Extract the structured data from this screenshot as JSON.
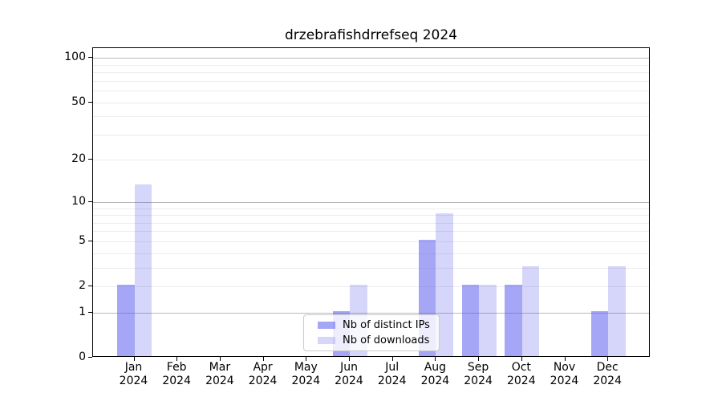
{
  "chart_data": {
    "type": "bar",
    "title": "drzebrafishdrrefseq 2024",
    "categories": [
      "Jan 2024",
      "Feb 2024",
      "Mar 2024",
      "Apr 2024",
      "May 2024",
      "Jun 2024",
      "Jul 2024",
      "Aug 2024",
      "Sep 2024",
      "Oct 2024",
      "Nov 2024",
      "Dec 2024"
    ],
    "series": [
      {
        "name": "Nb of distinct IPs",
        "color": "#5555ee",
        "alpha": 0.52,
        "values": [
          2,
          0,
          0,
          0,
          0,
          1,
          0,
          5,
          2,
          2,
          0,
          1
        ]
      },
      {
        "name": "Nb of downloads",
        "color": "#5555ee",
        "alpha": 0.24,
        "values": [
          13,
          0,
          0,
          0,
          0,
          2,
          0,
          8,
          2,
          3,
          0,
          3
        ]
      }
    ],
    "yscale": "log1p",
    "ylim": [
      0,
      115
    ],
    "yticks": [
      0,
      1,
      2,
      5,
      10,
      20,
      50,
      100
    ],
    "major_gridlines": [
      1,
      10,
      100
    ],
    "minor_gridlines": [
      2,
      3,
      4,
      5,
      6,
      7,
      8,
      9,
      20,
      30,
      40,
      50,
      60,
      70,
      80,
      90
    ],
    "grid": "horizontal",
    "legend_position": "inside-bottom-center",
    "colors": {
      "major_grid": "#b9b9b9",
      "minor_grid": "#ececec",
      "spine": "#000000",
      "legend_border": "#cccccc"
    }
  }
}
